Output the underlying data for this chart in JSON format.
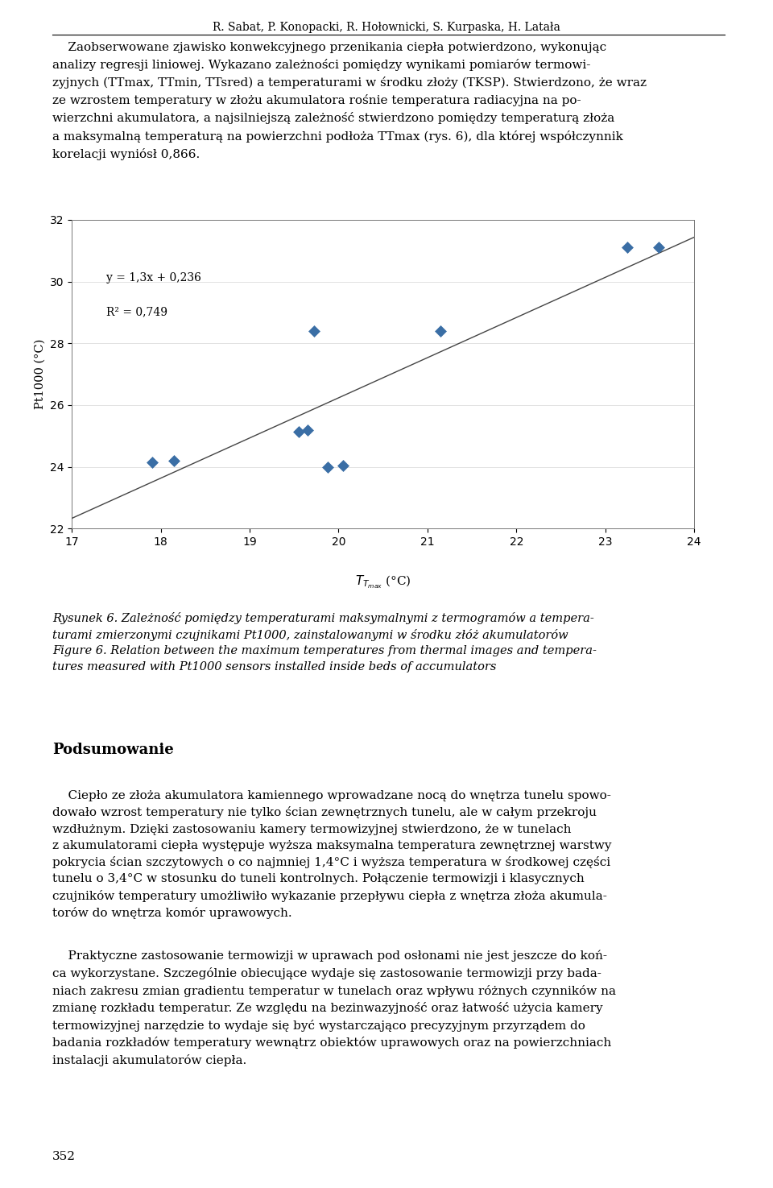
{
  "header": "R. Sabat, P. Konopacki, R. Hołownicki, S. Kurpaska, H. Latała",
  "scatter_x": [
    17.9,
    18.15,
    19.55,
    19.65,
    19.72,
    19.88,
    20.05,
    21.15,
    23.25,
    23.6
  ],
  "scatter_y": [
    24.15,
    24.2,
    25.15,
    25.2,
    28.4,
    24.0,
    24.05,
    28.4,
    31.1,
    31.1
  ],
  "reg_x_start": 17.0,
  "reg_x_end": 24.0,
  "reg_slope": 1.3,
  "reg_intercept": 0.236,
  "equation": "y = 1,3x + 0,236",
  "r_squared": "R² = 0,749",
  "ylabel": "Pt1000 (°C)",
  "xlim": [
    17,
    24
  ],
  "ylim": [
    22,
    32
  ],
  "xticks": [
    17,
    18,
    19,
    20,
    21,
    22,
    23,
    24
  ],
  "yticks": [
    22,
    24,
    26,
    28,
    30,
    32
  ],
  "marker_color": "#3a6ea5",
  "line_color": "#444444",
  "section_title": "Podsumowanie",
  "page_number": "352",
  "bg_color": "#ffffff",
  "text_color": "#000000"
}
